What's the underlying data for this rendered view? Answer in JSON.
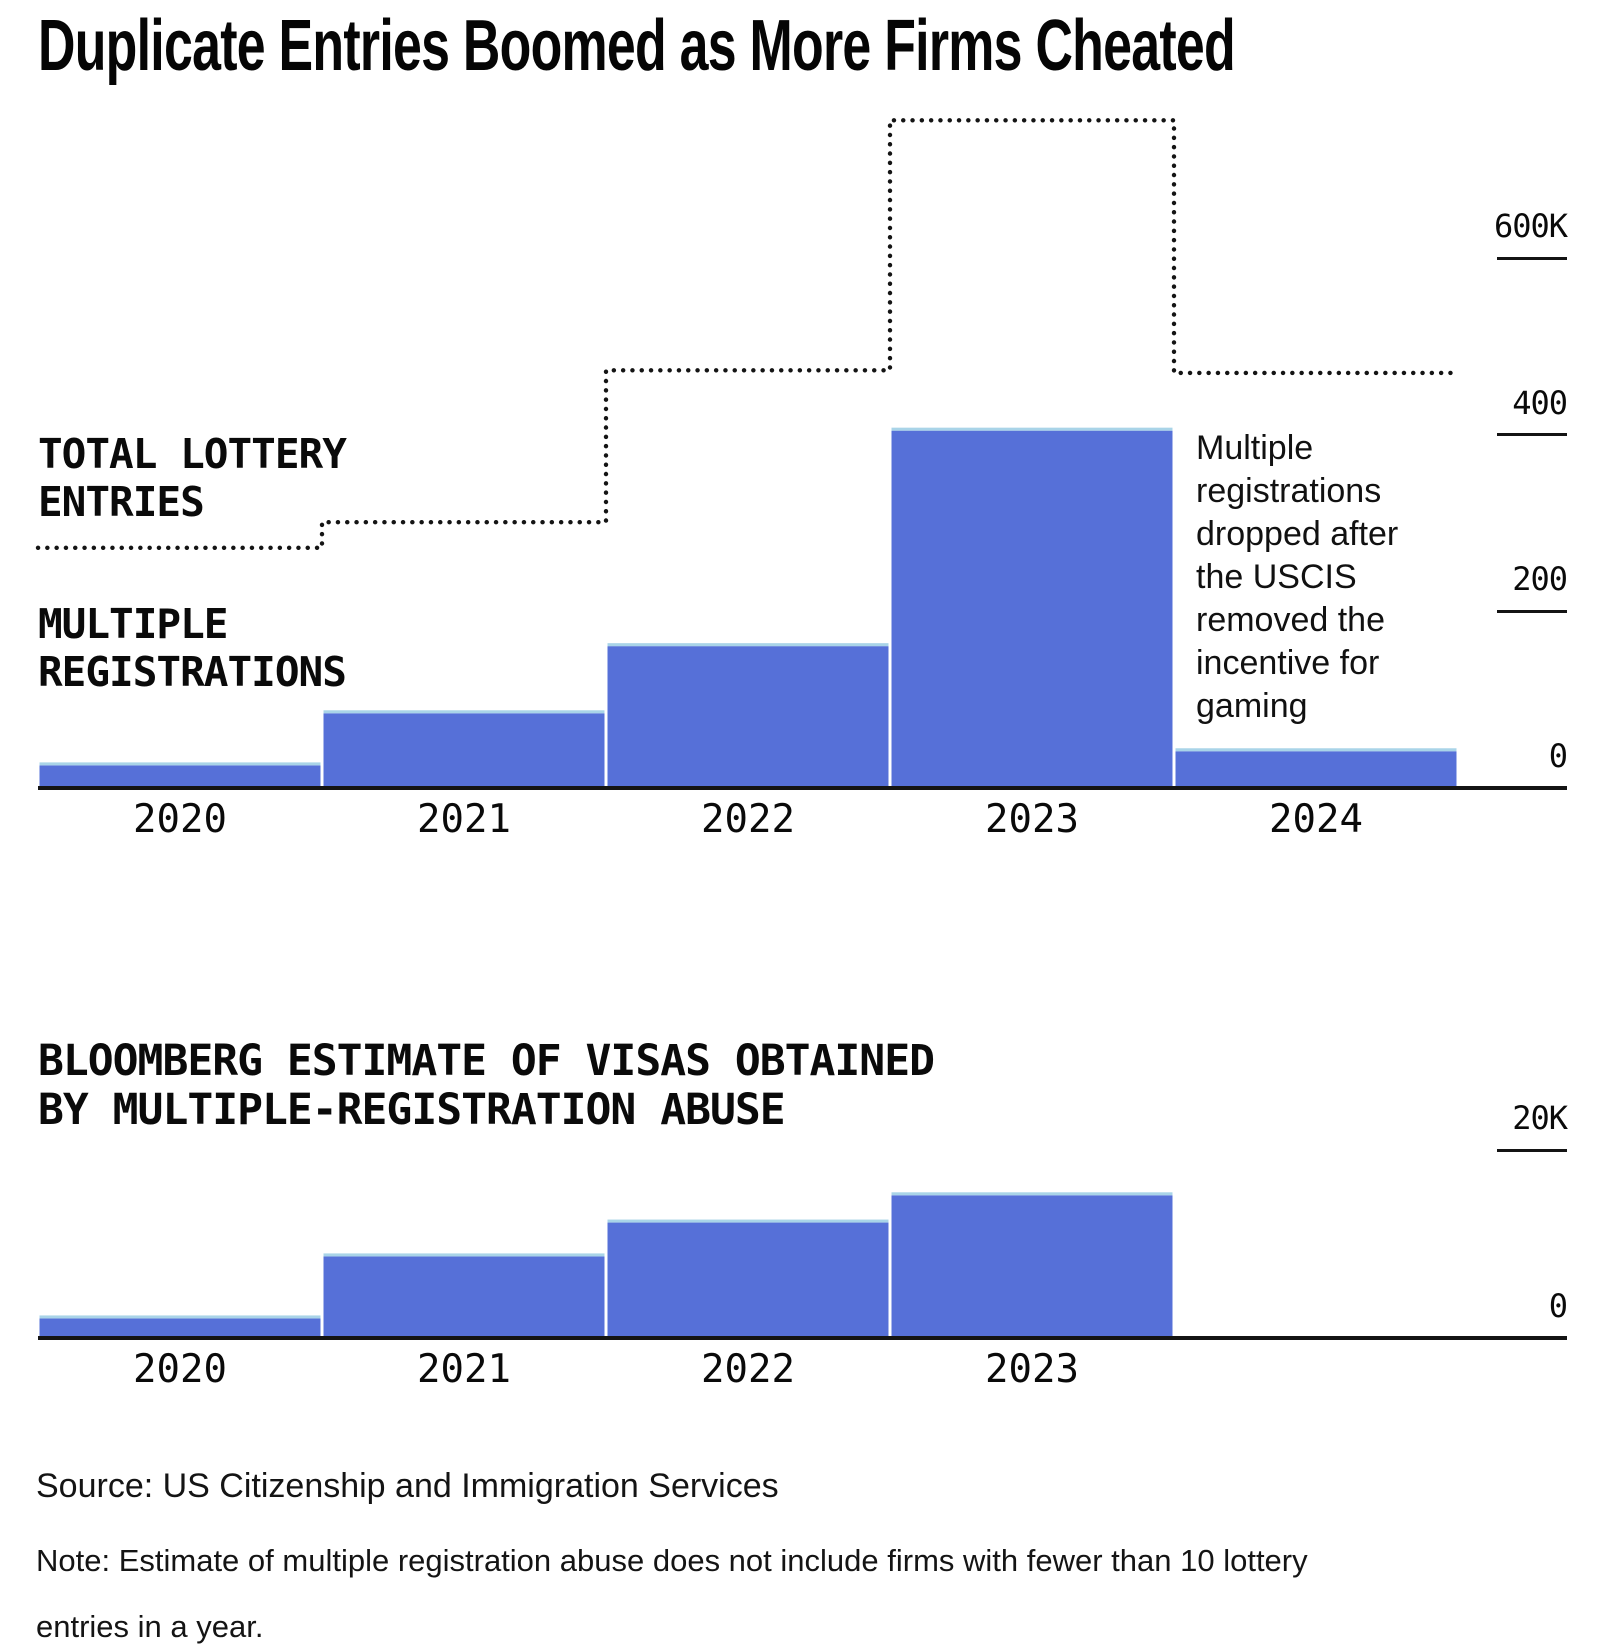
{
  "title": "Duplicate Entries Boomed as More Firms Cheated",
  "top_chart": {
    "total_label": "TOTAL LOTTERY\nENTRIES",
    "multiple_label": "MULTIPLE\nREGISTRATIONS",
    "annotation": "Multiple\nregistrations\ndropped after\nthe USCIS\nremoved the\nincentive for\ngaming"
  },
  "bottom_chart": {
    "title": "BLOOMBERG ESTIMATE OF VISAS OBTAINED\nBY MULTIPLE-REGISTRATION ABUSE"
  },
  "footer": {
    "source": "Source: US Citizenship and Immigration Services",
    "note": "Note: Estimate of multiple registration abuse does not include firms with fewer than 10 lottery\nentries in a year."
  },
  "colors": {
    "bar": "#5670d8",
    "bar_cap": "#a9d4e8",
    "ink": "#141414"
  },
  "chart_data": [
    {
      "type": "bar",
      "unit": "thousands (K)",
      "categories": [
        "2020",
        "2021",
        "2022",
        "2023",
        "2024"
      ],
      "series": [
        {
          "name": "MULTIPLE REGISTRATIONS",
          "type": "bar",
          "values": [
            29,
            88,
            164,
            408,
            45
          ]
        },
        {
          "name": "TOTAL LOTTERY ENTRIES",
          "type": "dotted-step-line",
          "values": [
            272,
            301,
            473,
            756,
            470
          ]
        }
      ],
      "y_ticks": [
        {
          "label": "600K",
          "value": 600
        },
        {
          "label": "400",
          "value": 400
        },
        {
          "label": "200",
          "value": 200
        },
        {
          "label": "0",
          "value": 0
        }
      ],
      "ylim": [
        0,
        760
      ],
      "grid": false,
      "legend": "labels at left of plot"
    },
    {
      "type": "bar",
      "unit": "thousands (K)",
      "categories": [
        "2020",
        "2021",
        "2022",
        "2023"
      ],
      "series": [
        {
          "name": "BLOOMBERG ESTIMATE OF VISAS OBTAINED BY MULTIPLE-REGISTRATION ABUSE",
          "type": "bar",
          "values": [
            2.4,
            9.0,
            12.6,
            15.5
          ]
        }
      ],
      "y_ticks": [
        {
          "label": "20K",
          "value": 20
        },
        {
          "label": "0",
          "value": 0
        }
      ],
      "ylim": [
        0,
        24
      ],
      "grid": false,
      "legend": "title above plot"
    }
  ]
}
